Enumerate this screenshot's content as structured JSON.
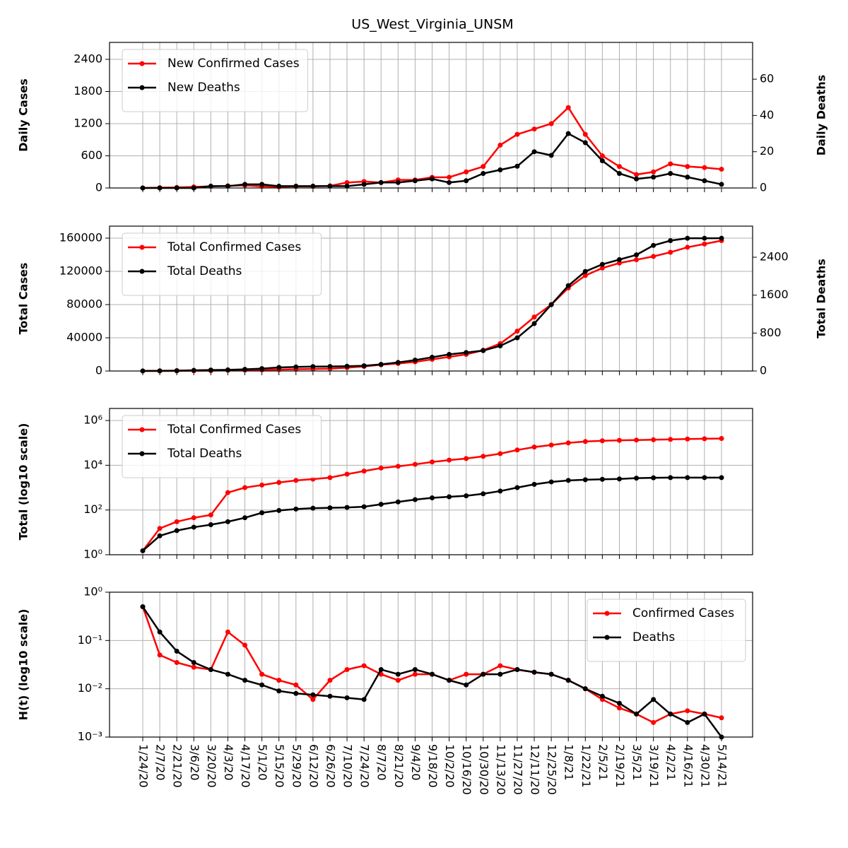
{
  "chart_data": [
    {
      "type": "line",
      "title": "US_West_Virginia_UNSM",
      "ylabel": "Daily Cases",
      "y2label": "Daily Deaths",
      "ylim": [
        0,
        2716
      ],
      "yticks": [
        0,
        600,
        1200,
        1800,
        2400
      ],
      "y2lim": [
        0,
        80.3
      ],
      "y2ticks": [
        0,
        20,
        40,
        60
      ],
      "grid": true,
      "legend": "upper left",
      "series": [
        {
          "name": "New Confirmed Cases",
          "color": "#ff0000",
          "values": [
            0,
            5,
            10,
            20,
            30,
            40,
            50,
            30,
            20,
            30,
            30,
            40,
            100,
            120,
            100,
            150,
            150,
            200,
            200,
            300,
            400,
            800,
            1000,
            1100,
            1200,
            1500,
            1000,
            600,
            400,
            250,
            300,
            450,
            400,
            380,
            350
          ]
        },
        {
          "name": "New Deaths",
          "color": "#000000",
          "axis": "y2",
          "values": [
            0,
            0,
            0,
            0,
            1,
            1,
            2,
            2,
            1,
            1,
            1,
            1,
            1,
            2,
            3,
            3,
            4,
            5,
            3,
            4,
            8,
            10,
            12,
            20,
            18,
            30,
            25,
            15,
            8,
            5,
            6,
            8,
            6,
            4,
            2
          ]
        }
      ]
    },
    {
      "type": "line",
      "ylabel": "Total Cases",
      "y2label": "Total Deaths",
      "ylim": [
        0,
        174468
      ],
      "yticks": [
        0,
        40000,
        80000,
        120000,
        160000
      ],
      "y2lim": [
        0,
        3056
      ],
      "y2ticks": [
        0,
        800,
        1600,
        2400
      ],
      "grid": true,
      "legend": "upper left",
      "series": [
        {
          "name": "Total Confirmed Cases",
          "color": "#ff0000",
          "values": [
            1,
            50,
            100,
            200,
            400,
            800,
            1000,
            1300,
            1700,
            2100,
            2400,
            2800,
            4000,
            5500,
            7500,
            9000,
            11000,
            14000,
            17000,
            20000,
            25000,
            33000,
            48000,
            65000,
            80000,
            100000,
            115000,
            124000,
            130000,
            134000,
            138000,
            143000,
            149000,
            153000,
            157000
          ]
        },
        {
          "name": "Total Deaths",
          "color": "#000000",
          "axis": "y2",
          "values": [
            1,
            4,
            8,
            14,
            20,
            25,
            35,
            50,
            75,
            85,
            93,
            95,
            100,
            110,
            140,
            180,
            230,
            290,
            350,
            390,
            430,
            530,
            700,
            1000,
            1400,
            1800,
            2100,
            2250,
            2350,
            2450,
            2650,
            2750,
            2800,
            2800,
            2800
          ]
        }
      ]
    },
    {
      "type": "line",
      "ylabel": "Total (log10 scale)",
      "log": true,
      "ylim": [
        1,
        3460000
      ],
      "yticks": [
        {
          "value": 1,
          "label": "10⁰"
        },
        {
          "value": 100,
          "label": "10²"
        },
        {
          "value": 10000,
          "label": "10⁴"
        },
        {
          "value": 1000000,
          "label": "10⁶"
        }
      ],
      "grid": true,
      "legend": "upper left",
      "series": [
        {
          "name": "Total Confirmed Cases",
          "color": "#ff0000",
          "values": [
            1.5,
            15,
            30,
            45,
            60,
            600,
            1000,
            1300,
            1700,
            2100,
            2400,
            2800,
            4000,
            5500,
            7500,
            9000,
            11000,
            14000,
            17000,
            20000,
            25000,
            33000,
            48000,
            65000,
            80000,
            100000,
            115000,
            124000,
            130000,
            134000,
            138000,
            143000,
            149000,
            153000,
            157000
          ]
        },
        {
          "name": "Total Deaths",
          "color": "#000000",
          "values": [
            1.5,
            7,
            12,
            17,
            22,
            30,
            45,
            75,
            95,
            110,
            120,
            125,
            130,
            140,
            180,
            230,
            290,
            350,
            390,
            430,
            530,
            700,
            1000,
            1400,
            1800,
            2100,
            2250,
            2350,
            2450,
            2650,
            2750,
            2800,
            2800,
            2800,
            2800
          ]
        }
      ]
    },
    {
      "type": "line",
      "ylabel": "H(t) (log10 scale)",
      "log": true,
      "ylim": [
        0.001,
        1
      ],
      "yticks": [
        {
          "value": 0.001,
          "label": "10⁻³"
        },
        {
          "value": 0.01,
          "label": "10⁻²"
        },
        {
          "value": 0.1,
          "label": "10⁻¹"
        },
        {
          "value": 1,
          "label": "10⁰"
        }
      ],
      "grid": true,
      "legend": "upper right",
      "x": [
        "1/24/20",
        "2/7/20",
        "2/21/20",
        "3/6/20",
        "3/20/20",
        "4/3/20",
        "4/17/20",
        "5/1/20",
        "5/15/20",
        "5/29/20",
        "6/12/20",
        "6/26/20",
        "7/10/20",
        "7/24/20",
        "8/7/20",
        "8/21/20",
        "9/4/20",
        "9/18/20",
        "10/2/20",
        "10/16/20",
        "10/30/20",
        "11/13/20",
        "11/27/20",
        "12/11/20",
        "12/25/20",
        "1/8/21",
        "1/22/21",
        "2/5/21",
        "2/19/21",
        "3/5/21",
        "3/19/21",
        "4/2/21",
        "4/16/21",
        "4/30/21",
        "5/14/21"
      ],
      "series": [
        {
          "name": "Confirmed Cases",
          "color": "#ff0000",
          "values": [
            0.5,
            0.05,
            0.035,
            0.028,
            0.025,
            0.15,
            0.08,
            0.02,
            0.015,
            0.012,
            0.006,
            0.015,
            0.025,
            0.03,
            0.02,
            0.015,
            0.02,
            0.02,
            0.015,
            0.02,
            0.02,
            0.03,
            0.025,
            0.022,
            0.02,
            0.015,
            0.01,
            0.006,
            0.004,
            0.003,
            0.002,
            0.003,
            0.0035,
            0.003,
            0.0025
          ]
        },
        {
          "name": "Deaths",
          "color": "#000000",
          "values": [
            0.5,
            0.15,
            0.06,
            0.035,
            0.025,
            0.02,
            0.015,
            0.012,
            0.009,
            0.008,
            0.0075,
            0.007,
            0.0065,
            0.006,
            0.025,
            0.02,
            0.025,
            0.02,
            0.015,
            0.012,
            0.02,
            0.02,
            0.025,
            0.022,
            0.02,
            0.015,
            0.01,
            0.007,
            0.005,
            0.003,
            0.006,
            0.003,
            0.002,
            0.003,
            0.001
          ]
        }
      ]
    }
  ]
}
